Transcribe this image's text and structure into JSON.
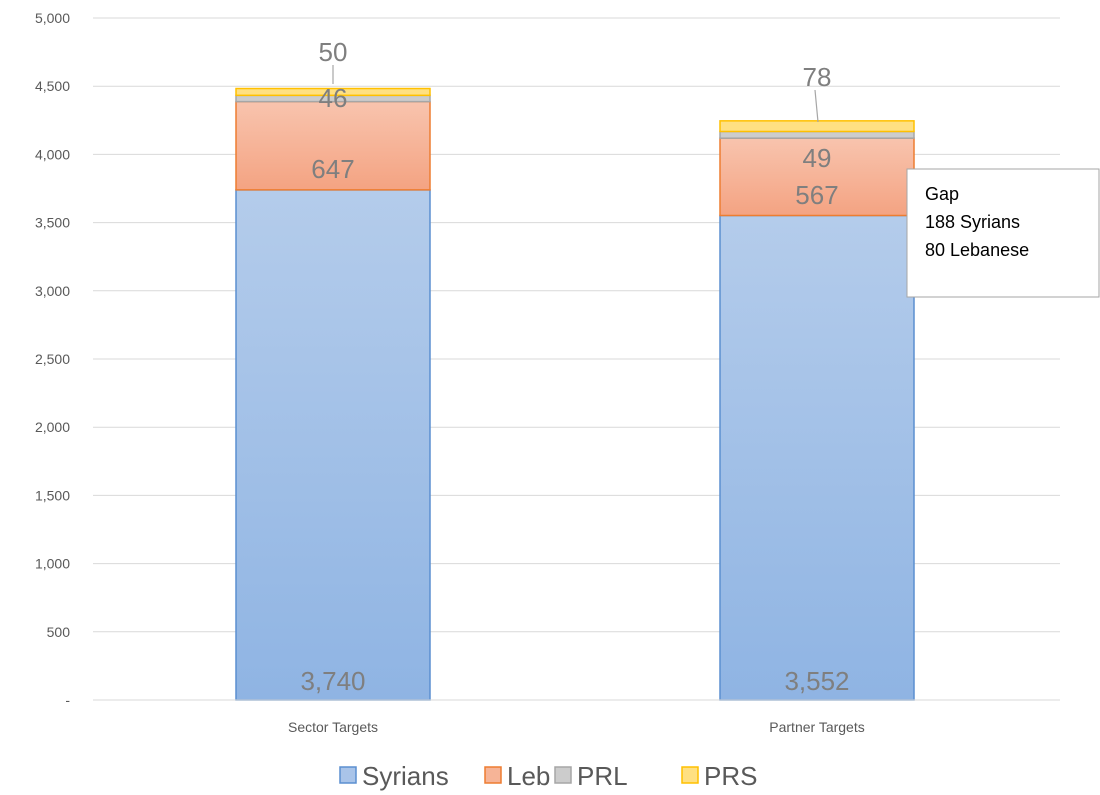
{
  "chart_data": {
    "type": "bar",
    "stacked": true,
    "categories": [
      "Sector Targets",
      "Partner Targets"
    ],
    "series": [
      {
        "name": "Syrians",
        "values": [
          3740,
          3552
        ],
        "labels": [
          "3,740",
          "3,552"
        ],
        "color": "#8fb4e3"
      },
      {
        "name": "Leb",
        "values": [
          647,
          567
        ],
        "labels": [
          "647",
          "567"
        ],
        "color": "#f4a98a"
      },
      {
        "name": "PRL",
        "values": [
          46,
          49
        ],
        "labels": [
          "46",
          "49"
        ],
        "color": "#c9c9c9"
      },
      {
        "name": "PRS",
        "values": [
          50,
          78
        ],
        "labels": [
          "50",
          "78"
        ],
        "color": "#ffd966"
      }
    ],
    "ylim": [
      0,
      5000
    ],
    "yticks": [
      {
        "value": 0,
        "label": "-"
      },
      {
        "value": 500,
        "label": "500"
      },
      {
        "value": 1000,
        "label": "1,000"
      },
      {
        "value": 1500,
        "label": "1,500"
      },
      {
        "value": 2000,
        "label": "2,000"
      },
      {
        "value": 2500,
        "label": "2,500"
      },
      {
        "value": 3000,
        "label": "3,000"
      },
      {
        "value": 3500,
        "label": "3,500"
      },
      {
        "value": 4000,
        "label": "4,000"
      },
      {
        "value": 4500,
        "label": "4,500"
      },
      {
        "value": 5000,
        "label": "5,000"
      }
    ],
    "grid": true,
    "legend_position": "bottom",
    "annotation": {
      "lines": [
        "Gap",
        "188 Syrians",
        "80 Lebanese"
      ]
    }
  }
}
